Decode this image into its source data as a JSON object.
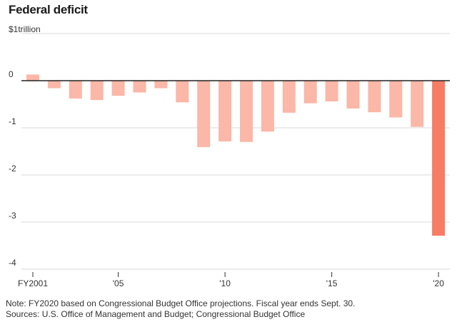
{
  "chart_data": {
    "type": "bar",
    "title": "Federal deficit",
    "ylabel": "$1trillion",
    "xlabel": "",
    "categories": [
      "2001",
      "2002",
      "2003",
      "2004",
      "2005",
      "2006",
      "2007",
      "2008",
      "2009",
      "2010",
      "2011",
      "2012",
      "2013",
      "2014",
      "2015",
      "2016",
      "2017",
      "2018",
      "2019",
      "2020"
    ],
    "values": [
      0.13,
      -0.16,
      -0.38,
      -0.41,
      -0.32,
      -0.25,
      -0.16,
      -0.46,
      -1.41,
      -1.29,
      -1.3,
      -1.08,
      -0.68,
      -0.48,
      -0.44,
      -0.59,
      -0.67,
      -0.78,
      -0.98,
      -3.29
    ],
    "ylim": [
      -4,
      1
    ],
    "yticks": [
      {
        "value": 0,
        "label": "0"
      },
      {
        "value": -1,
        "label": "-1"
      },
      {
        "value": -2,
        "label": "-2"
      },
      {
        "value": -3,
        "label": "-3"
      },
      {
        "value": -4,
        "label": "-4"
      }
    ],
    "xticks": [
      {
        "category": "2001",
        "label": "FY2001"
      },
      {
        "category": "2005",
        "label": "'05"
      },
      {
        "category": "2010",
        "label": "'10"
      },
      {
        "category": "2015",
        "label": "'15"
      },
      {
        "category": "2020",
        "label": "'20"
      }
    ],
    "highlight_category": "2020",
    "grid": true,
    "colors": {
      "bar": "#fbb7a7",
      "highlight": "#f67c64",
      "grid": "#d9d9d9",
      "zero_line": "#222222"
    },
    "note": "Note: FY2020 based on Congressional Budget Office projections. Fiscal year ends Sept. 30.",
    "sources": "Sources: U.S. Office of Management and Budget; Congressional Budget Office"
  }
}
